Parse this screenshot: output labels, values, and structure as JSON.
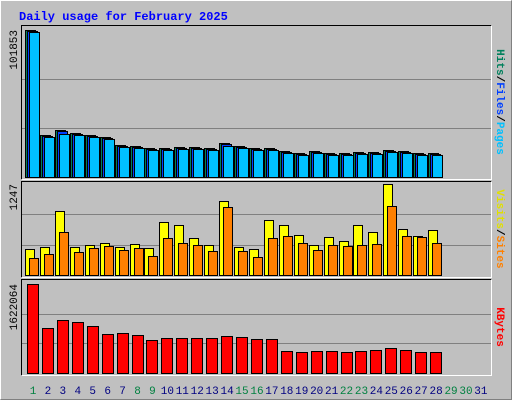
{
  "chart_data": {
    "type": "bar",
    "title": "Daily usage for February 2025",
    "categories": [
      "1",
      "2",
      "3",
      "4",
      "5",
      "6",
      "7",
      "8",
      "9",
      "10",
      "11",
      "12",
      "13",
      "14",
      "15",
      "16",
      "17",
      "18",
      "19",
      "20",
      "21",
      "22",
      "23",
      "24",
      "25",
      "26",
      "27",
      "28",
      "29",
      "30",
      "31"
    ],
    "label_colors": [
      "#008040",
      "#000080",
      "#000080",
      "#000080",
      "#000080",
      "#000080",
      "#000080",
      "#008040",
      "#008040",
      "#000080",
      "#000080",
      "#000080",
      "#000080",
      "#000080",
      "#008040",
      "#008040",
      "#000080",
      "#000080",
      "#000080",
      "#000080",
      "#000080",
      "#008040",
      "#008040",
      "#000080",
      "#000080",
      "#000080",
      "#000080",
      "#000080",
      "#008040",
      "#008040",
      "#000080"
    ],
    "legend_separator": "/",
    "panels": [
      {
        "ylim": [
          0,
          101853
        ],
        "yticks": [
          101853
        ],
        "series": [
          {
            "name": "Hits",
            "color": "#00805c",
            "values": [
              101853,
              29106,
              32571,
              30492,
              29106,
              27720,
              22176,
              21483,
              20097,
              20097,
              20790,
              20790,
              20097,
              23562,
              21483,
              20097,
              20097,
              18018,
              16632,
              18018,
              16632,
              16632,
              17325,
              17325,
              18711,
              18018,
              16632,
              16632,
              null,
              null,
              null
            ]
          },
          {
            "name": "Files",
            "color": "#0040ff",
            "values": [
              101200,
              28400,
              31900,
              29800,
              28400,
              27000,
              21500,
              20800,
              19400,
              19400,
              20100,
              20100,
              19400,
              22900,
              20800,
              19400,
              19400,
              17300,
              15900,
              17300,
              15900,
              15900,
              16600,
              16600,
              18000,
              17300,
              15900,
              15900,
              null,
              null,
              null
            ]
          },
          {
            "name": "Pages",
            "color": "#00c0ff",
            "values": [
              100800,
              27700,
              29800,
              29100,
              27700,
              26300,
              20800,
              20100,
              18700,
              18700,
              19400,
              19400,
              18700,
              21500,
              20100,
              18700,
              18700,
              16600,
              15200,
              16600,
              15200,
              15200,
              15900,
              15900,
              17300,
              16600,
              15200,
              15200,
              null,
              null,
              null
            ]
          }
        ]
      },
      {
        "ylim": [
          0,
          1247
        ],
        "yticks": [
          1247
        ],
        "series": [
          {
            "name": "Visits",
            "color": "#ffff00",
            "values": [
              356,
              384,
              877,
              384,
              411,
              438,
              384,
              425,
              370,
              726,
              685,
              507,
              411,
              1014,
              384,
              356,
              753,
              685,
              548,
              411,
              521,
              466,
              685,
              589,
              1247,
              630,
              534,
              617,
              null,
              null,
              null
            ]
          },
          {
            "name": "Sites",
            "color": "#ff8000",
            "values": [
              233,
              288,
              589,
              315,
              370,
              397,
              342,
              370,
              260,
              507,
              438,
              411,
              329,
              932,
              329,
              247,
              507,
              534,
              438,
              342,
              411,
              397,
              411,
              425,
              946,
              534,
              521,
              438,
              null,
              null,
              null
            ]
          }
        ]
      },
      {
        "ylim": [
          0,
          1622064
        ],
        "yticks": [
          1622064
        ],
        "series": [
          {
            "name": "KBytes",
            "color": "#ff0000",
            "values": [
              1622064,
              820125,
              965925,
              929475,
              856575,
              710775,
              729000,
              692550,
              601425,
              637875,
              637875,
              637875,
              637875,
              674325,
              656100,
              619650,
              619650,
              400950,
              382725,
              400950,
              400950,
              382725,
              400950,
              419175,
              455625,
              419175,
              382725,
              382725,
              null,
              null,
              null
            ]
          }
        ]
      }
    ]
  }
}
